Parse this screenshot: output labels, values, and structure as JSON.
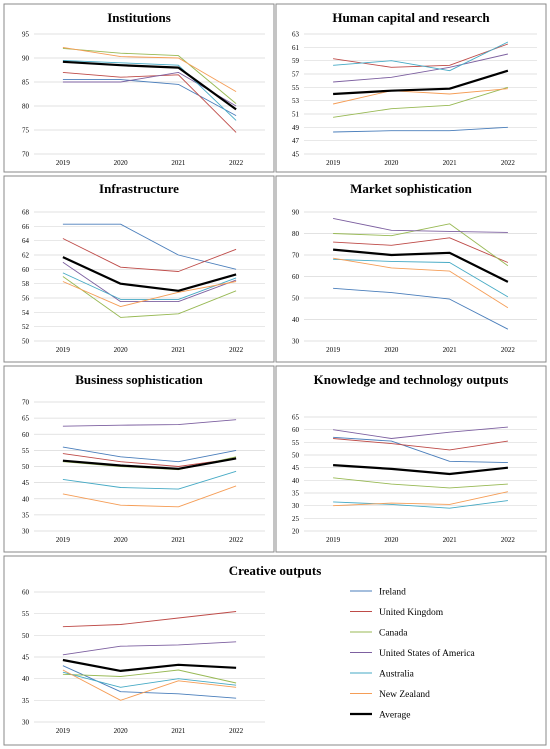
{
  "chart_data": [
    {
      "type": "line",
      "title": "Institutions",
      "x": [
        "2019",
        "2020",
        "2021",
        "2022"
      ],
      "ylim": [
        70,
        95
      ],
      "yticks": [
        70,
        75,
        80,
        85,
        90,
        95
      ],
      "series": [
        {
          "name": "Ireland",
          "values": [
            85.5,
            85.5,
            84.5,
            78.0
          ]
        },
        {
          "name": "United Kingdom",
          "values": [
            87.0,
            86.0,
            86.5,
            74.5
          ]
        },
        {
          "name": "Canada",
          "values": [
            92.0,
            91.0,
            90.5,
            80.5
          ]
        },
        {
          "name": "United States of America",
          "values": [
            85.0,
            85.0,
            87.0,
            80.0
          ]
        },
        {
          "name": "Australia",
          "values": [
            89.5,
            89.0,
            88.5,
            77.0
          ]
        },
        {
          "name": "New Zealand",
          "values": [
            92.2,
            90.3,
            90.0,
            83.0
          ]
        },
        {
          "name": "Average",
          "values": [
            89.2,
            88.5,
            88.0,
            79.3
          ]
        }
      ]
    },
    {
      "type": "line",
      "title": "Human capital and research",
      "x": [
        "2019",
        "2020",
        "2021",
        "2022"
      ],
      "ylim": [
        45,
        63
      ],
      "yticks": [
        45,
        47,
        49,
        51,
        53,
        55,
        57,
        59,
        61,
        63
      ],
      "series": [
        {
          "name": "Ireland",
          "values": [
            48.3,
            48.5,
            48.5,
            49.0
          ]
        },
        {
          "name": "United Kingdom",
          "values": [
            59.3,
            58.0,
            58.3,
            61.5
          ]
        },
        {
          "name": "Canada",
          "values": [
            50.5,
            51.8,
            52.3,
            55.0
          ]
        },
        {
          "name": "United States of America",
          "values": [
            55.8,
            56.5,
            58.0,
            60.0
          ]
        },
        {
          "name": "Australia",
          "values": [
            58.3,
            59.0,
            57.5,
            61.8
          ]
        },
        {
          "name": "New Zealand",
          "values": [
            52.5,
            54.5,
            54.0,
            54.8
          ]
        },
        {
          "name": "Average",
          "values": [
            54.0,
            54.5,
            54.8,
            57.5
          ]
        }
      ]
    },
    {
      "type": "line",
      "title": "Infrastructure",
      "x": [
        "2019",
        "2020",
        "2021",
        "2022"
      ],
      "ylim": [
        50,
        68
      ],
      "yticks": [
        50,
        52,
        54,
        56,
        58,
        60,
        62,
        64,
        66,
        68
      ],
      "series": [
        {
          "name": "Ireland",
          "values": [
            66.3,
            66.3,
            62.0,
            60.0
          ]
        },
        {
          "name": "United Kingdom",
          "values": [
            64.3,
            60.3,
            59.7,
            62.8
          ]
        },
        {
          "name": "Canada",
          "values": [
            59.0,
            53.3,
            53.8,
            57.0
          ]
        },
        {
          "name": "United States of America",
          "values": [
            61.0,
            55.5,
            55.5,
            58.5
          ]
        },
        {
          "name": "Australia",
          "values": [
            59.5,
            55.8,
            55.8,
            58.8
          ]
        },
        {
          "name": "New Zealand",
          "values": [
            58.3,
            54.8,
            56.8,
            58.3
          ]
        },
        {
          "name": "Average",
          "values": [
            61.7,
            58.0,
            57.0,
            59.3
          ]
        }
      ]
    },
    {
      "type": "line",
      "title": "Market sophistication",
      "x": [
        "2019",
        "2020",
        "2021",
        "2022"
      ],
      "ylim": [
        30,
        90
      ],
      "yticks": [
        30,
        40,
        50,
        60,
        70,
        80,
        90
      ],
      "series": [
        {
          "name": "Ireland",
          "values": [
            54.5,
            52.5,
            49.5,
            35.5
          ]
        },
        {
          "name": "United Kingdom",
          "values": [
            76.0,
            74.5,
            78.0,
            66.5
          ]
        },
        {
          "name": "Canada",
          "values": [
            80.0,
            79.0,
            84.5,
            65.0
          ]
        },
        {
          "name": "United States of America",
          "values": [
            87.0,
            81.5,
            81.0,
            80.5
          ]
        },
        {
          "name": "Australia",
          "values": [
            68.0,
            67.0,
            66.5,
            50.5
          ]
        },
        {
          "name": "New Zealand",
          "values": [
            68.5,
            64.0,
            62.5,
            45.5
          ]
        },
        {
          "name": "Average",
          "values": [
            72.5,
            70.0,
            71.0,
            57.5
          ]
        }
      ]
    },
    {
      "type": "line",
      "title": "Business sophistication",
      "x": [
        "2019",
        "2020",
        "2021",
        "2022"
      ],
      "ylim": [
        30,
        70
      ],
      "yticks": [
        30,
        35,
        40,
        45,
        50,
        55,
        60,
        65,
        70
      ],
      "series": [
        {
          "name": "Ireland",
          "values": [
            56.0,
            53.0,
            51.5,
            55.0
          ]
        },
        {
          "name": "United Kingdom",
          "values": [
            54.0,
            51.5,
            50.0,
            52.5
          ]
        },
        {
          "name": "Canada",
          "values": [
            51.5,
            50.0,
            49.0,
            53.0
          ]
        },
        {
          "name": "United States of America",
          "values": [
            62.5,
            62.8,
            63.0,
            64.5
          ]
        },
        {
          "name": "Australia",
          "values": [
            46.0,
            43.5,
            43.0,
            48.5
          ]
        },
        {
          "name": "New Zealand",
          "values": [
            41.5,
            38.0,
            37.5,
            44.0
          ]
        },
        {
          "name": "Average",
          "values": [
            51.8,
            50.3,
            49.3,
            52.5
          ]
        }
      ]
    },
    {
      "type": "line",
      "title": "Knowledge and technology outputs",
      "x": [
        "2019",
        "2020",
        "2021",
        "2022"
      ],
      "ylim": [
        20,
        65
      ],
      "yticks": [
        20,
        25,
        30,
        35,
        40,
        45,
        50,
        55,
        60,
        65
      ],
      "series": [
        {
          "name": "Ireland",
          "values": [
            57.0,
            55.5,
            47.5,
            47.0
          ]
        },
        {
          "name": "United Kingdom",
          "values": [
            56.5,
            54.5,
            52.0,
            55.5
          ]
        },
        {
          "name": "Canada",
          "values": [
            41.0,
            38.5,
            37.0,
            38.5
          ]
        },
        {
          "name": "United States of America",
          "values": [
            60.0,
            56.5,
            59.0,
            61.0
          ]
        },
        {
          "name": "Australia",
          "values": [
            31.5,
            30.5,
            29.0,
            32.0
          ]
        },
        {
          "name": "New Zealand",
          "values": [
            30.0,
            31.0,
            30.5,
            35.5
          ]
        },
        {
          "name": "Average",
          "values": [
            46.0,
            44.5,
            42.5,
            45.0
          ]
        }
      ]
    },
    {
      "type": "line",
      "title": "Creative outputs",
      "x": [
        "2019",
        "2020",
        "2021",
        "2022"
      ],
      "ylim": [
        30,
        60
      ],
      "yticks": [
        30,
        35,
        40,
        45,
        50,
        55,
        60
      ],
      "series": [
        {
          "name": "Ireland",
          "values": [
            43.0,
            37.0,
            36.5,
            35.5
          ]
        },
        {
          "name": "United Kingdom",
          "values": [
            52.0,
            52.5,
            54.0,
            55.5
          ]
        },
        {
          "name": "Canada",
          "values": [
            41.0,
            40.5,
            42.0,
            39.0
          ]
        },
        {
          "name": "United States of America",
          "values": [
            45.5,
            47.5,
            47.8,
            48.5
          ]
        },
        {
          "name": "Australia",
          "values": [
            41.5,
            38.0,
            40.0,
            38.5
          ]
        },
        {
          "name": "New Zealand",
          "values": [
            42.0,
            35.0,
            39.5,
            38.0
          ]
        },
        {
          "name": "Average",
          "values": [
            44.3,
            41.8,
            43.2,
            42.5
          ]
        }
      ]
    }
  ],
  "legend": {
    "entries": [
      {
        "name": "Ireland",
        "color": "#4a7ebb"
      },
      {
        "name": "United Kingdom",
        "color": "#be4b48"
      },
      {
        "name": "Canada",
        "color": "#98b954"
      },
      {
        "name": "United States of America",
        "color": "#7d60a0"
      },
      {
        "name": "Australia",
        "color": "#46aac5"
      },
      {
        "name": "New Zealand",
        "color": "#f59d56"
      },
      {
        "name": "Average",
        "color": "#000000"
      }
    ]
  }
}
